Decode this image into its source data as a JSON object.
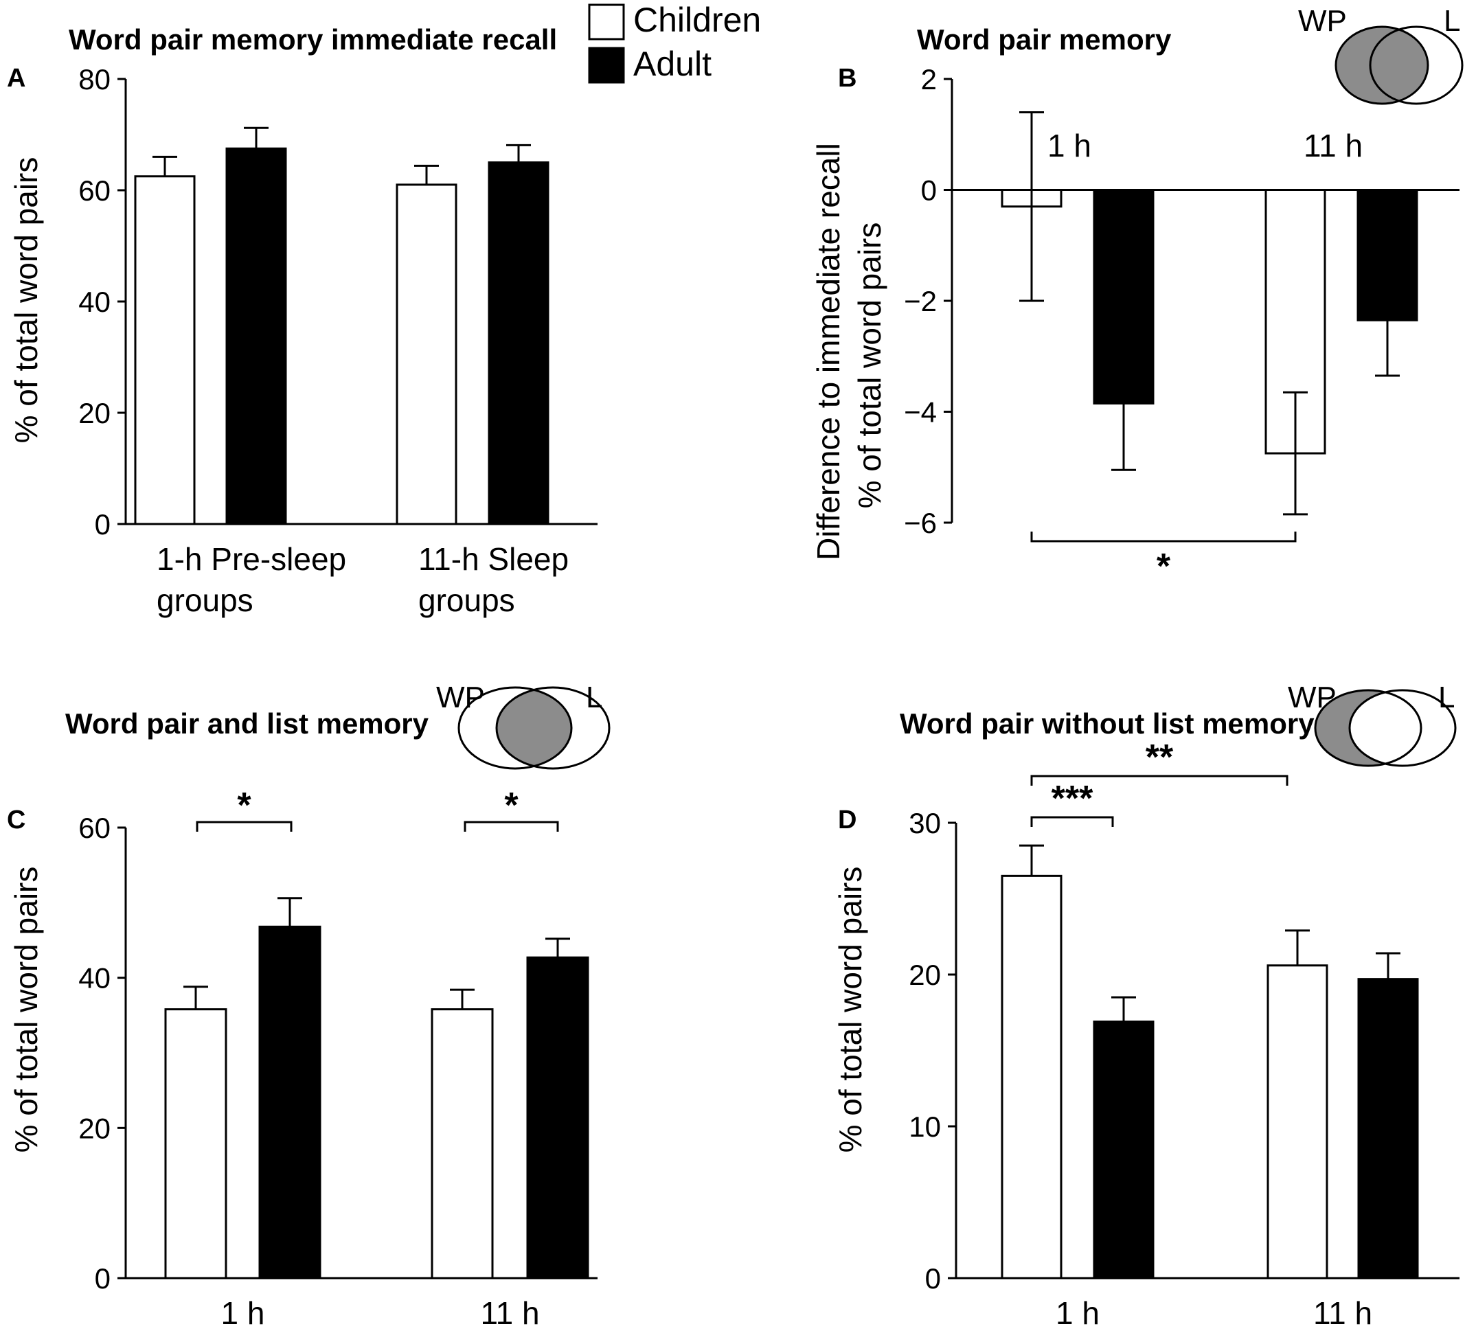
{
  "legend": {
    "children": "Children",
    "adult": "Adult",
    "children_color": "#ffffff",
    "adult_color": "#000000"
  },
  "venn": {
    "wp": "WP",
    "l": "L",
    "shade": "#8c8c8c"
  },
  "chart_data": [
    {
      "type": "bar",
      "panel": "A",
      "title": "Word pair memory immediate recall",
      "ylabel": "% of total word pairs",
      "ylim": [
        0,
        80
      ],
      "yticks": [
        "0",
        "20",
        "40",
        "60",
        "80"
      ],
      "categories": [
        "1-h Pre-sleep groups",
        "11-h Sleep groups"
      ],
      "category_lines": [
        [
          "1-h Pre-sleep",
          "groups"
        ],
        [
          "11-h Sleep",
          "groups"
        ]
      ],
      "series": [
        {
          "name": "Children",
          "values": [
            62.5,
            61
          ],
          "errors": [
            3.5,
            3.4
          ]
        },
        {
          "name": "Adult",
          "values": [
            67.5,
            65
          ],
          "errors": [
            3.7,
            3.1
          ]
        }
      ]
    },
    {
      "type": "bar",
      "panel": "B",
      "title": "Word pair memory",
      "ylabel_lines": [
        "Difference to immediate recall",
        "% of total word pairs"
      ],
      "ylim": [
        -6,
        2
      ],
      "yticks": [
        "−6",
        "−4",
        "−2",
        "0",
        "2"
      ],
      "categories": [
        "1 h",
        "11 h"
      ],
      "series": [
        {
          "name": "Children",
          "values": [
            -0.3,
            -4.75
          ],
          "errors": [
            1.7,
            1.1
          ]
        },
        {
          "name": "Adult",
          "values": [
            -3.85,
            -2.35
          ],
          "errors": [
            1.2,
            1.0
          ]
        }
      ],
      "venn_highlight": "wp",
      "significance": [
        {
          "from": "1 h Children",
          "to": "11 h Children",
          "label": "*"
        }
      ]
    },
    {
      "type": "bar",
      "panel": "C",
      "title": "Word pair and list memory",
      "ylabel": "% of total word pairs",
      "ylim": [
        0,
        60
      ],
      "yticks": [
        "0",
        "20",
        "40",
        "60"
      ],
      "categories": [
        "1 h",
        "11 h"
      ],
      "series": [
        {
          "name": "Children",
          "values": [
            35.8,
            35.8
          ],
          "errors": [
            3.0,
            2.6
          ]
        },
        {
          "name": "Adult",
          "values": [
            46.8,
            42.7
          ],
          "errors": [
            3.8,
            2.5
          ]
        }
      ],
      "venn_highlight": "intersection",
      "significance": [
        {
          "from": "1 h Children",
          "to": "1 h Adult",
          "label": "*"
        },
        {
          "from": "11 h Children",
          "to": "11 h Adult",
          "label": "*"
        }
      ]
    },
    {
      "type": "bar",
      "panel": "D",
      "title": "Word pair without list memory",
      "ylabel": "% of total word pairs",
      "ylim": [
        0,
        30
      ],
      "yticks": [
        "0",
        "10",
        "20",
        "30"
      ],
      "categories": [
        "1 h",
        "11 h"
      ],
      "series": [
        {
          "name": "Children",
          "values": [
            26.5,
            20.6
          ],
          "errors": [
            2.0,
            2.3
          ]
        },
        {
          "name": "Adult",
          "values": [
            16.9,
            19.7
          ],
          "errors": [
            1.6,
            1.7
          ]
        }
      ],
      "venn_highlight": "wp_only",
      "significance": [
        {
          "from": "1 h Children",
          "to": "1 h Adult",
          "label": "***"
        },
        {
          "from": "1 h Children",
          "to": "11 h Children",
          "label": "**"
        }
      ]
    }
  ]
}
